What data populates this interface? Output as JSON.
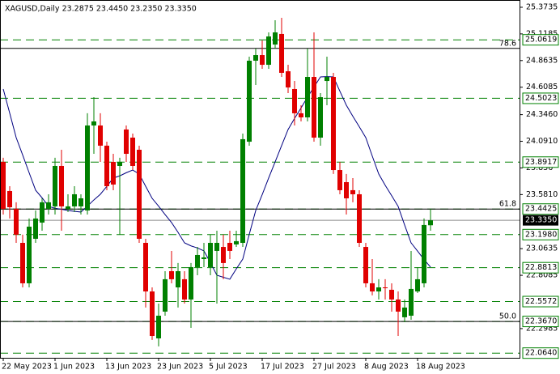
{
  "chart_data": {
    "type": "candlestick",
    "title": "XAGUSD,Daily  23.2875 23.4450 23.2350 23.3350",
    "categories": [
      "22 May 2023",
      null,
      null,
      null,
      null,
      null,
      null,
      null,
      "1 Jun 2023",
      null,
      null,
      null,
      null,
      null,
      null,
      null,
      "13 Jun 2023",
      null,
      null,
      null,
      null,
      null,
      null,
      null,
      "23 Jun 2023",
      null,
      null,
      null,
      null,
      null,
      null,
      null,
      "5 Jul 2023",
      null,
      null,
      null,
      null,
      null,
      null,
      null,
      "17 Jul 2023",
      null,
      null,
      null,
      null,
      null,
      null,
      null,
      "27 Jul 2023",
      null,
      null,
      null,
      null,
      null,
      null,
      null,
      "8 Aug 2023",
      null,
      null,
      null,
      null,
      null,
      null,
      null,
      "18 Aug 2023",
      null,
      null
    ],
    "open": [
      23.894,
      23.615,
      23.445,
      23.119,
      22.732,
      23.158,
      23.313,
      23.445,
      23.468,
      23.855,
      23.445,
      23.468,
      23.468,
      23.429,
      24.242,
      24.242,
      24.049,
      23.894,
      23.855,
      24.204,
      24.126,
      24.01,
      23.119,
      22.654,
      22.205,
      22.461,
      22.848,
      22.693,
      22.771,
      22.577,
      22.887,
      22.964,
      22.887,
      23.042,
      23.08,
      23.119,
      23.104,
      23.119,
      24.087,
      24.862,
      24.916,
      24.823,
      25.017,
      25.118,
      24.761,
      24.591,
      24.359,
      24.32,
      24.707,
      24.126,
      24.668,
      24.707,
      23.816,
      23.7,
      23.623,
      23.584,
      23.08,
      22.732,
      22.654,
      22.693,
      22.67,
      22.577,
      22.407,
      22.422,
      22.654,
      22.732,
      23.2875
    ],
    "high": [
      23.933,
      23.661,
      23.507,
      23.197,
      23.352,
      23.429,
      23.545,
      23.584,
      23.933,
      24.01,
      23.584,
      23.661,
      23.584,
      24.359,
      24.513,
      24.359,
      24.087,
      23.971,
      23.933,
      24.242,
      24.165,
      24.049,
      23.158,
      22.693,
      22.538,
      22.848,
      23.042,
      22.926,
      22.848,
      22.926,
      23.08,
      23.119,
      23.197,
      23.235,
      23.197,
      23.235,
      23.235,
      24.165,
      24.901,
      24.978,
      25.056,
      25.133,
      25.249,
      25.273,
      24.823,
      24.668,
      24.436,
      24.978,
      25.133,
      24.552,
      24.901,
      24.746,
      23.894,
      23.778,
      23.739,
      23.623,
      23.119,
      22.964,
      22.771,
      22.771,
      22.732,
      22.654,
      22.577,
      23.042,
      22.887,
      23.352,
      23.445
    ],
    "low": [
      23.39,
      23.352,
      23.119,
      22.693,
      22.693,
      23.119,
      23.235,
      23.39,
      23.39,
      23.235,
      23.414,
      23.414,
      23.39,
      23.39,
      23.971,
      23.894,
      23.623,
      23.623,
      23.197,
      23.894,
      23.816,
      23.119,
      22.5,
      22.19,
      22.128,
      22.422,
      22.732,
      22.5,
      22.538,
      22.306,
      22.809,
      22.887,
      22.809,
      22.538,
      22.771,
      22.964,
      23.08,
      23.08,
      24.049,
      24.63,
      24.785,
      24.785,
      24.978,
      24.707,
      24.552,
      24.242,
      24.281,
      24.281,
      24.087,
      24.049,
      24.436,
      23.778,
      23.584,
      23.39,
      23.507,
      23.08,
      22.693,
      22.616,
      22.577,
      22.577,
      22.461,
      22.228,
      22.36,
      22.383,
      22.639,
      22.693,
      23.235
    ],
    "close": [
      23.445,
      23.46,
      23.197,
      22.732,
      23.274,
      23.352,
      23.507,
      23.507,
      23.855,
      23.468,
      23.468,
      23.584,
      23.545,
      24.242,
      24.281,
      24.049,
      23.661,
      23.677,
      23.894,
      23.971,
      23.855,
      23.158,
      22.654,
      22.228,
      22.422,
      22.771,
      22.771,
      22.848,
      22.577,
      22.887,
      23.003,
      22.98,
      23.119,
      23.119,
      22.926,
      23.042,
      23.135,
      24.111,
      24.862,
      24.916,
      24.823,
      25.094,
      25.133,
      24.746,
      24.606,
      24.359,
      24.32,
      24.707,
      24.126,
      24.513,
      24.707,
      23.816,
      23.623,
      23.545,
      23.584,
      23.119,
      22.732,
      22.654,
      22.693,
      22.685,
      22.577,
      22.461,
      22.5,
      22.678,
      22.771,
      23.29,
      23.335
    ],
    "up_color": "#008000",
    "down_color": "#e00000",
    "ma": {
      "color": "#000080",
      "values": [
        24.591,
        24.36,
        24.126,
        23.96,
        23.79,
        23.623,
        23.55,
        23.468,
        23.45,
        23.44,
        23.429,
        23.42,
        23.414,
        23.47,
        23.53,
        23.584,
        23.66,
        23.739,
        23.76,
        23.79,
        23.816,
        23.778,
        23.66,
        23.545,
        23.47,
        23.39,
        23.313,
        23.22,
        23.119,
        23.09,
        23.07,
        23.042,
        22.93,
        22.809,
        22.79,
        22.771,
        22.87,
        22.964,
        23.2,
        23.429,
        23.58,
        23.74,
        23.894,
        24.05,
        24.204,
        24.31,
        24.41,
        24.513,
        24.61,
        24.707,
        24.71,
        24.707,
        24.57,
        24.436,
        24.33,
        24.23,
        24.126,
        23.95,
        23.778,
        23.67,
        23.57,
        23.468,
        23.29,
        23.119,
        23.04,
        22.96,
        22.887
      ]
    },
    "levels": [
      25.0619,
      24.5023,
      23.8917,
      23.4425,
      {
        "value": 23.198,
        "label": "23.1980"
      },
      22.8813,
      22.5572,
      {
        "value": 22.367,
        "label": "22.3670"
      },
      {
        "value": 22.064,
        "label": "22.0640"
      }
    ],
    "level_color": "#008000",
    "fib": [
      {
        "name": "78.6",
        "price": 24.98
      },
      {
        "name": "61.8",
        "price": 23.4425
      },
      {
        "name": "50.0",
        "price": 22.367
      }
    ],
    "price": {
      "value": 23.335,
      "label": "23.3350"
    },
    "ylim": [
      22.019,
      25.443
    ],
    "yticks": [
      25.3735,
      25.1185,
      24.8635,
      24.6085,
      {
        "value": 24.346,
        "label": "24.3460"
      },
      {
        "value": 24.091,
        "label": "24.0910"
      },
      23.836,
      {
        "value": 23.581,
        "label": "23.5810"
      },
      23.0635,
      22.8085,
      22.2985
    ]
  }
}
